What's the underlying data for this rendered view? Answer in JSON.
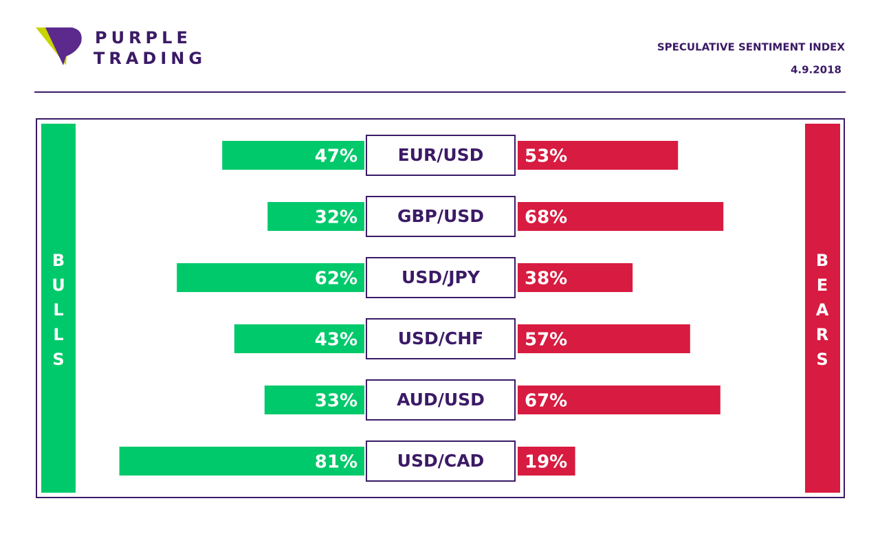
{
  "chart_data": {
    "type": "butterfly",
    "logo_text": [
      "PURPLE",
      "TRADING"
    ],
    "title": "SPECULATIVE SENTIMENT INDEX",
    "subtitle": "4.9.2018",
    "categories": [
      "EUR/USD",
      "GBP/USD",
      "USD/JPY",
      "USD/CHF",
      "AUD/USD",
      "USD/CAD"
    ],
    "series": [
      {
        "name": "BULLS",
        "color": "#00c96b",
        "values": [
          47,
          32,
          62,
          43,
          33,
          81
        ],
        "value_labels": [
          "47%",
          "32%",
          "62%",
          "43%",
          "33%",
          "81%"
        ]
      },
      {
        "name": "BEARS",
        "color": "#d81b40",
        "values": [
          53,
          68,
          38,
          57,
          67,
          19
        ],
        "value_labels": [
          "53%",
          "68%",
          "38%",
          "57%",
          "67%",
          "19%"
        ]
      }
    ]
  }
}
